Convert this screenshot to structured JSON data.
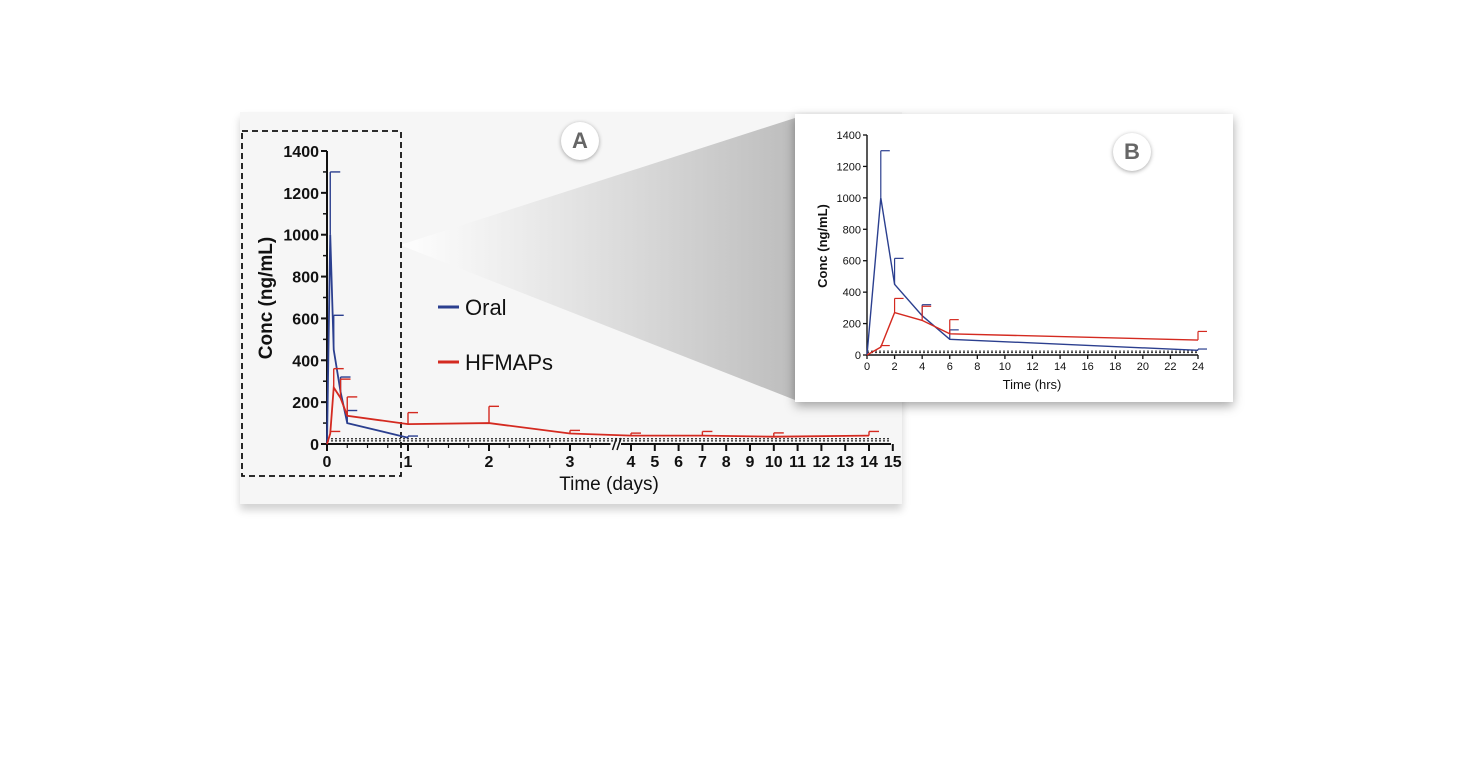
{
  "colors": {
    "oral": "#2b3f8f",
    "hfmaps": "#d42a20"
  },
  "chart_data": [
    {
      "panel": "A",
      "type": "line",
      "xlabel": "Time (days)",
      "ylabel": "Conc (ng/mL)",
      "ylim": [
        0,
        1400
      ],
      "yticks": [
        0,
        200,
        400,
        600,
        800,
        1000,
        1200,
        1400
      ],
      "xticks": [
        0,
        1,
        2,
        3,
        4,
        5,
        6,
        7,
        8,
        9,
        10,
        11,
        12,
        13,
        14,
        15
      ],
      "x_axis_break": [
        3.5,
        3.8
      ],
      "lloq_lines": [
        15,
        25
      ],
      "legend": "center-left",
      "series": [
        {
          "name": "Oral",
          "x": [
            0,
            0.04,
            0.083,
            0.167,
            0.25,
            1
          ],
          "y": [
            0,
            1000,
            450,
            250,
            100,
            30
          ],
          "err": [
            0,
            300,
            165,
            70,
            60,
            8
          ]
        },
        {
          "name": "HFMAPs",
          "x": [
            0,
            0.04,
            0.083,
            0.167,
            0.25,
            1,
            2,
            3,
            4,
            7,
            10,
            14
          ],
          "y": [
            0,
            50,
            270,
            220,
            135,
            95,
            100,
            50,
            40,
            40,
            35,
            40
          ],
          "err": [
            0,
            10,
            90,
            90,
            90,
            55,
            80,
            15,
            12,
            20,
            18,
            20
          ]
        }
      ],
      "badge": "A"
    },
    {
      "panel": "B",
      "type": "line",
      "xlabel": "Time (hrs)",
      "ylabel": "Conc (ng/mL)",
      "xlim": [
        0,
        24
      ],
      "ylim": [
        0,
        1400
      ],
      "yticks": [
        0,
        200,
        400,
        600,
        800,
        1000,
        1200,
        1400
      ],
      "xticks": [
        0,
        2,
        4,
        6,
        8,
        10,
        12,
        14,
        16,
        18,
        20,
        22,
        24
      ],
      "lloq_lines": [
        15,
        25
      ],
      "series": [
        {
          "name": "Oral",
          "x": [
            0,
            1,
            2,
            4,
            6,
            24
          ],
          "y": [
            0,
            1000,
            450,
            250,
            100,
            30
          ],
          "err": [
            0,
            300,
            165,
            70,
            60,
            8
          ]
        },
        {
          "name": "HFMAPs",
          "x": [
            0,
            1,
            2,
            4,
            6,
            24
          ],
          "y": [
            0,
            50,
            270,
            220,
            135,
            95
          ],
          "err": [
            0,
            10,
            90,
            90,
            90,
            55
          ]
        }
      ],
      "badge": "B"
    }
  ]
}
